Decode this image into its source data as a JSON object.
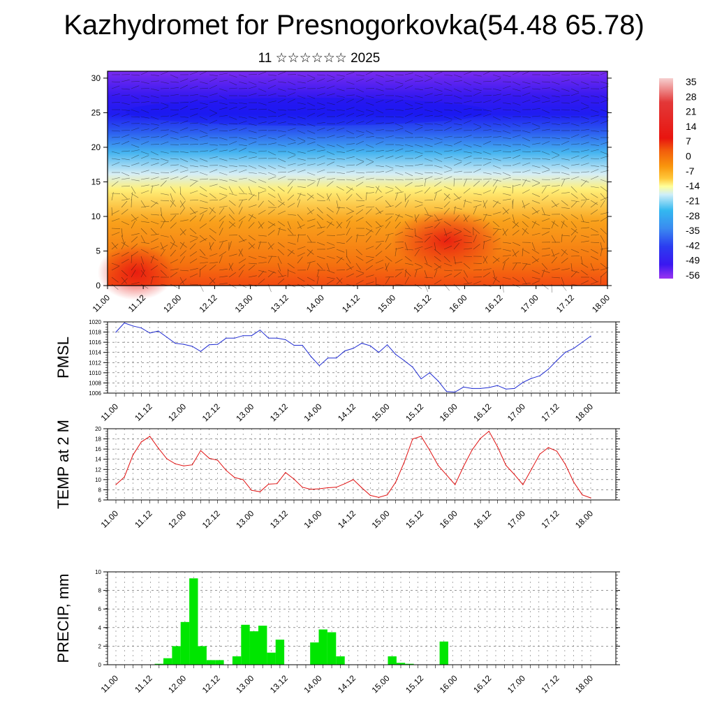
{
  "title": "Kazhydromet for Presnogorkovka(54.48 65.78)",
  "subtitle": "11 ☆☆☆☆☆☆ 2025",
  "colors": {
    "pmsl": "#1f2bd1",
    "temp": "#e01010",
    "precip": "#00e600"
  },
  "chart_data": [
    {
      "type": "heatmap",
      "name": "cross-section",
      "x_ticks": [
        "11.00",
        "11.12",
        "12.00",
        "12.12",
        "13.00",
        "13.12",
        "14.00",
        "14.12",
        "15.00",
        "15.12",
        "16.00",
        "16.12",
        "17.00",
        "17.12",
        "18.00"
      ],
      "y_ticks": [
        "0",
        "5",
        "10",
        "15",
        "20",
        "25",
        "30"
      ],
      "ylim": [
        0,
        31
      ],
      "colorbar_labels": [
        "35",
        "28",
        "21",
        "14",
        "7",
        "0",
        "-7",
        "-14",
        "-21",
        "-28",
        "-35",
        "-42",
        "-49",
        "-56"
      ],
      "colorbar_colors": [
        "#ffffff",
        "#f2a4a4",
        "#e33030",
        "#e8150f",
        "#f05a0a",
        "#f9930c",
        "#ffd23c",
        "#ffffa0",
        "#b8e4f0",
        "#38b8f0",
        "#3a88f0",
        "#2b3cf0",
        "#3a18f0",
        "#8a2cf0"
      ]
    },
    {
      "type": "line",
      "ylabel": "PMSL",
      "ylim": [
        1006,
        1020
      ],
      "y_ticks": [
        "1006",
        "1008",
        "1010",
        "1012",
        "1014",
        "1016",
        "1018",
        "1020"
      ],
      "x_ticks": [
        "11.00",
        "11.12",
        "12.00",
        "12.12",
        "13.00",
        "13.12",
        "14.00",
        "14.12",
        "15.00",
        "15.12",
        "16.00",
        "16.12",
        "17.00",
        "17.12",
        "18.00"
      ],
      "values": [
        1018,
        1019.8,
        1019.2,
        1018.8,
        1017.8,
        1018.2,
        1017,
        1015.8,
        1015.6,
        1015.2,
        1014.2,
        1015.5,
        1015.6,
        1016.8,
        1016.8,
        1017.3,
        1017.3,
        1018.4,
        1016.8,
        1016.8,
        1016.5,
        1015.4,
        1015.4,
        1013.2,
        1011.4,
        1012.9,
        1012.9,
        1014.3,
        1014.8,
        1015.8,
        1015.3,
        1014,
        1015.5,
        1013.6,
        1012.4,
        1011.1,
        1008.8,
        1010,
        1008.4,
        1006.3,
        1006.2,
        1007.2,
        1006.9,
        1006.9,
        1007.1,
        1007.5,
        1006.8,
        1006.9,
        1008.1,
        1008.9,
        1009.4,
        1010.7,
        1012.4,
        1014,
        1014.8,
        1016,
        1017.2
      ]
    },
    {
      "type": "line",
      "ylabel": "TEMP at 2 M",
      "ylim": [
        6,
        20
      ],
      "y_ticks": [
        "6",
        "8",
        "10",
        "12",
        "14",
        "16",
        "18",
        "20"
      ],
      "x_ticks": [
        "11.00",
        "11.12",
        "12.00",
        "12.12",
        "13.00",
        "13.12",
        "14.00",
        "14.12",
        "15.00",
        "15.12",
        "16.00",
        "16.12",
        "17.00",
        "17.12",
        "18.00"
      ],
      "values": [
        9,
        10.5,
        14.8,
        17.4,
        18.5,
        16.2,
        14.1,
        13.1,
        12.7,
        12.9,
        15.7,
        14.2,
        13.8,
        11.8,
        10.4,
        10,
        7.9,
        7.6,
        9.1,
        9.2,
        11.4,
        10.1,
        8.5,
        8.1,
        8.2,
        8.4,
        8.5,
        9.2,
        10,
        8.4,
        6.9,
        6.5,
        7,
        9.5,
        13.4,
        18,
        18.5,
        15.8,
        12.8,
        10.9,
        9,
        12.6,
        15.8,
        18.1,
        19.5,
        16.5,
        12.8,
        11,
        9,
        12,
        15,
        16.3,
        15.6,
        13,
        9.5,
        7,
        6.4
      ]
    },
    {
      "type": "bar",
      "ylabel": "PRECIP, mm",
      "ylim": [
        0,
        10
      ],
      "y_ticks": [
        "0",
        "2",
        "4",
        "6",
        "8",
        "10"
      ],
      "x_ticks": [
        "11.00",
        "11.12",
        "12.00",
        "12.12",
        "13.00",
        "13.12",
        "14.00",
        "14.12",
        "15.00",
        "15.12",
        "16.00",
        "16.12",
        "17.00",
        "17.12",
        "18.00"
      ],
      "values": [
        0,
        0,
        0,
        0,
        0,
        0.1,
        0.7,
        2,
        4.6,
        9.3,
        2,
        0.5,
        0.5,
        0,
        0.9,
        4.3,
        3.6,
        4.2,
        1.3,
        2.7,
        0,
        0,
        0,
        2.4,
        3.8,
        3.5,
        0.9,
        0,
        0,
        0,
        0,
        0,
        0.9,
        0.2,
        0.1,
        0,
        0,
        0,
        2.5,
        0,
        0,
        0,
        0,
        0,
        0,
        0,
        0,
        0,
        0,
        0,
        0,
        0,
        0,
        0,
        0,
        0
      ]
    }
  ]
}
